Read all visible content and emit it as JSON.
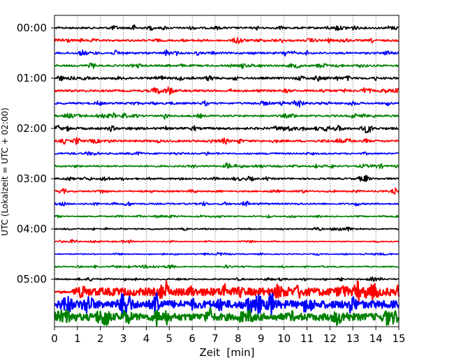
{
  "chart_data": {
    "type": "line",
    "xlabel": "Zeit  [min]",
    "ylabel": "UTC (Lokalzeit = UTC + 02:00)",
    "xlim": [
      0,
      15
    ],
    "x_ticks": [
      "0",
      "1",
      "2",
      "3",
      "4",
      "5",
      "6",
      "7",
      "8",
      "9",
      "10",
      "11",
      "12",
      "13",
      "14",
      "15"
    ],
    "y_tick_labels": [
      "00:00",
      "01:00",
      "02:00",
      "03:00",
      "04:00",
      "05:00"
    ],
    "grid": "vertical dotted",
    "trace_interval_minutes": 15,
    "trace_colors": [
      "#000000",
      "#ff0000",
      "#0000ff",
      "#008000"
    ],
    "traces": [
      {
        "start": "00:00",
        "color": "#000000",
        "amplitude": 1.0
      },
      {
        "start": "00:15",
        "color": "#ff0000",
        "amplitude": 1.0
      },
      {
        "start": "00:30",
        "color": "#0000ff",
        "amplitude": 1.0
      },
      {
        "start": "00:45",
        "color": "#008000",
        "amplitude": 1.0
      },
      {
        "start": "01:00",
        "color": "#000000",
        "amplitude": 1.1
      },
      {
        "start": "01:15",
        "color": "#ff0000",
        "amplitude": 1.1
      },
      {
        "start": "01:30",
        "color": "#0000ff",
        "amplitude": 1.0
      },
      {
        "start": "01:45",
        "color": "#008000",
        "amplitude": 1.0
      },
      {
        "start": "02:00",
        "color": "#000000",
        "amplitude": 1.2
      },
      {
        "start": "02:15",
        "color": "#ff0000",
        "amplitude": 1.1
      },
      {
        "start": "02:30",
        "color": "#0000ff",
        "amplitude": 0.8
      },
      {
        "start": "02:45",
        "color": "#008000",
        "amplitude": 0.9
      },
      {
        "start": "03:00",
        "color": "#000000",
        "amplitude": 0.9
      },
      {
        "start": "03:15",
        "color": "#ff0000",
        "amplitude": 0.8
      },
      {
        "start": "03:30",
        "color": "#0000ff",
        "amplitude": 0.8
      },
      {
        "start": "03:45",
        "color": "#008000",
        "amplitude": 0.6
      },
      {
        "start": "04:00",
        "color": "#000000",
        "amplitude": 0.6
      },
      {
        "start": "04:15",
        "color": "#ff0000",
        "amplitude": 0.5
      },
      {
        "start": "04:30",
        "color": "#0000ff",
        "amplitude": 0.5
      },
      {
        "start": "04:45",
        "color": "#008000",
        "amplitude": 0.6
      },
      {
        "start": "05:00",
        "color": "#000000",
        "amplitude": 0.7
      },
      {
        "start": "05:15",
        "color": "#ff0000",
        "amplitude": 2.6,
        "onset_min": 0.8
      },
      {
        "start": "05:30",
        "color": "#0000ff",
        "amplitude": 2.6
      },
      {
        "start": "05:45",
        "color": "#008000",
        "amplitude": 2.4
      }
    ]
  }
}
